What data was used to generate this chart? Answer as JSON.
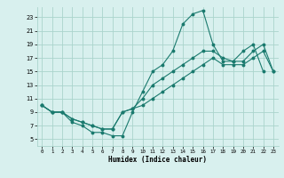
{
  "xlabel": "Humidex (Indice chaleur)",
  "bg_color": "#d8f0ee",
  "grid_color": "#aad4cc",
  "line_color": "#1a7a6e",
  "xlim": [
    -0.5,
    23.5
  ],
  "ylim": [
    4.0,
    24.5
  ],
  "yticks": [
    5,
    7,
    9,
    11,
    13,
    15,
    17,
    19,
    21,
    23
  ],
  "xticks": [
    0,
    1,
    2,
    3,
    4,
    5,
    6,
    7,
    8,
    9,
    10,
    11,
    12,
    13,
    14,
    15,
    16,
    17,
    18,
    19,
    20,
    21,
    22,
    23
  ],
  "series": [
    {
      "x": [
        0,
        1,
        2,
        3,
        4,
        5,
        6,
        7,
        8,
        9,
        10,
        11,
        12,
        13,
        14,
        15,
        16,
        17,
        18,
        19,
        20,
        21,
        22,
        23
      ],
      "y": [
        10,
        9,
        9,
        7.5,
        7,
        6,
        6,
        5.5,
        5.5,
        9,
        12,
        15,
        16,
        18,
        22,
        23.5,
        24,
        19,
        16.5,
        16.5,
        18,
        19,
        15,
        null
      ]
    },
    {
      "x": [
        0,
        1,
        2,
        3,
        4,
        5,
        6,
        7,
        8,
        9,
        10,
        11,
        12,
        13,
        14,
        15,
        16,
        17,
        18,
        19,
        20,
        21,
        22,
        23
      ],
      "y": [
        10,
        9,
        9,
        8,
        7.5,
        7,
        6.5,
        6.5,
        9,
        9.5,
        11,
        13,
        14,
        15,
        16,
        17,
        18,
        18,
        17,
        16.5,
        16.5,
        18,
        19,
        15
      ]
    },
    {
      "x": [
        0,
        1,
        2,
        3,
        4,
        5,
        6,
        7,
        8,
        9,
        10,
        11,
        12,
        13,
        14,
        15,
        16,
        17,
        18,
        19,
        20,
        21,
        22,
        23
      ],
      "y": [
        10,
        9,
        9,
        8,
        7.5,
        7,
        6.5,
        6.5,
        9,
        9.5,
        10,
        11,
        12,
        13,
        14,
        15,
        16,
        17,
        16,
        16,
        16,
        17,
        18,
        15
      ]
    }
  ]
}
